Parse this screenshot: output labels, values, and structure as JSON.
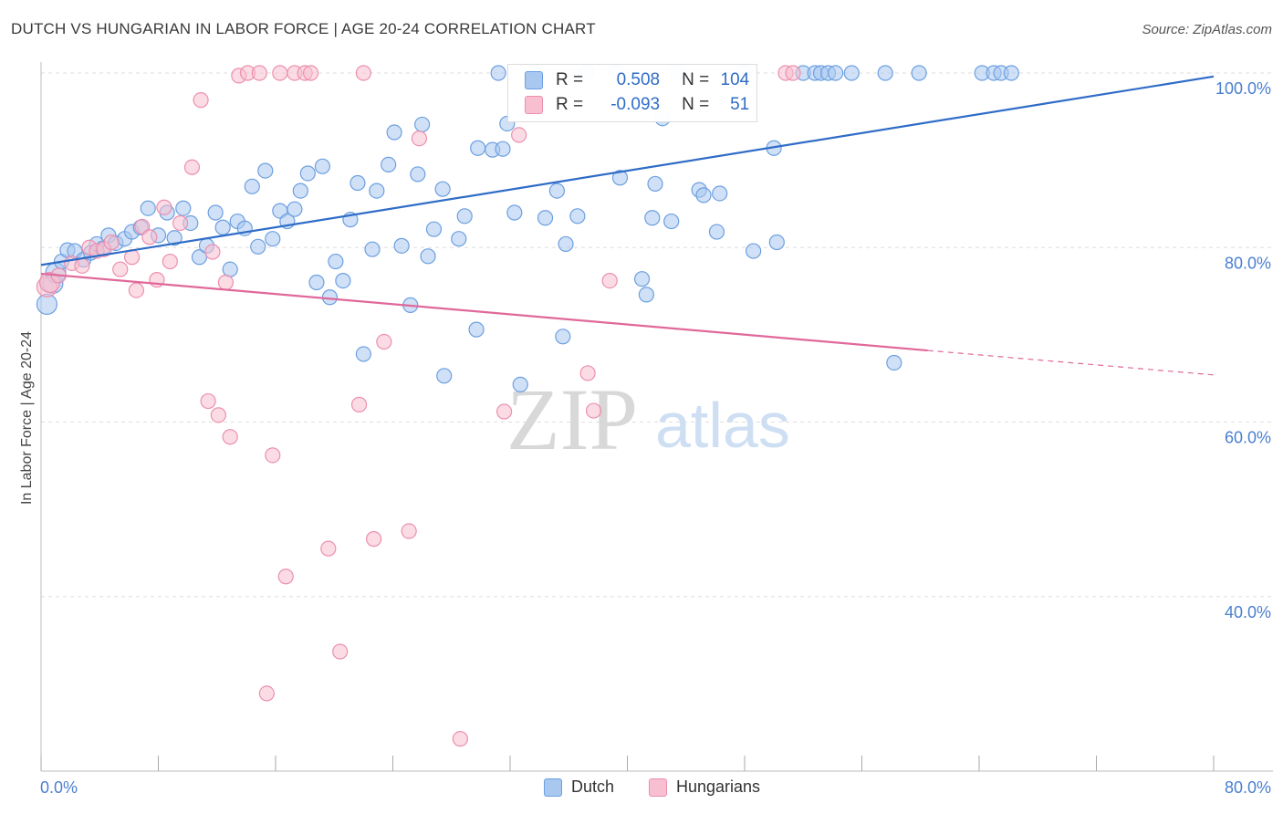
{
  "title": "DUTCH VS HUNGARIAN IN LABOR FORCE | AGE 20-24 CORRELATION CHART",
  "source": "Source: ZipAtlas.com",
  "watermark": {
    "zip": "ZIP",
    "atlas": "atlas"
  },
  "legend": {
    "dutch": {
      "r_label": "R = ",
      "r_value": "0.508",
      "n_label": "N = ",
      "n_value": "104"
    },
    "hungarians": {
      "r_label": "R = ",
      "r_value": "-0.093",
      "n_label": "N = ",
      "n_value": "51"
    }
  },
  "colors": {
    "dutch_fill": "#a9c8f0",
    "dutch_stroke": "#6c9fe0",
    "dutch_line": "#2f6cc7",
    "hung_fill": "#f7bfd0",
    "hung_stroke": "#ec8fae",
    "hung_line": "#e0689a",
    "tick": "#4a7fd0",
    "grid": "#dedede"
  },
  "chart_data": {
    "type": "scatter",
    "title": "DUTCH VS HUNGARIAN IN LABOR FORCE | AGE 20-24 CORRELATION CHART",
    "xlabel": "",
    "ylabel": "In Labor Force | Age 20-24",
    "xlim": [
      0,
      80
    ],
    "ylim": [
      20,
      100
    ],
    "x_ticks": [
      "0.0%",
      "80.0%"
    ],
    "y_ticks": [
      "100.0%",
      "80.0%",
      "60.0%",
      "40.0%"
    ],
    "y_tick_values": [
      100,
      80,
      60,
      40
    ],
    "grid": true,
    "legend_position": "top-center",
    "series": [
      {
        "name": "Dutch",
        "trend": {
          "x": [
            0,
            80
          ],
          "y": [
            78.0,
            99.6
          ]
        },
        "points": [
          [
            0.4,
            73.5
          ],
          [
            0.8,
            75.9
          ],
          [
            1.0,
            77.1
          ],
          [
            1.4,
            78.4
          ],
          [
            1.8,
            79.7
          ],
          [
            2.3,
            79.6
          ],
          [
            2.9,
            78.6
          ],
          [
            3.4,
            79.4
          ],
          [
            3.8,
            80.4
          ],
          [
            4.2,
            79.9
          ],
          [
            4.6,
            81.4
          ],
          [
            5.1,
            80.5
          ],
          [
            5.7,
            81.0
          ],
          [
            6.2,
            81.8
          ],
          [
            6.8,
            82.3
          ],
          [
            7.3,
            84.5
          ],
          [
            8.0,
            81.4
          ],
          [
            8.6,
            84.0
          ],
          [
            9.1,
            81.1
          ],
          [
            9.7,
            84.5
          ],
          [
            10.2,
            82.8
          ],
          [
            10.8,
            78.9
          ],
          [
            11.3,
            80.2
          ],
          [
            11.9,
            84.0
          ],
          [
            12.4,
            82.3
          ],
          [
            12.9,
            77.5
          ],
          [
            13.4,
            83.0
          ],
          [
            13.9,
            82.2
          ],
          [
            14.4,
            87.0
          ],
          [
            14.8,
            80.1
          ],
          [
            15.3,
            88.8
          ],
          [
            15.8,
            81.0
          ],
          [
            16.3,
            84.2
          ],
          [
            16.8,
            83.0
          ],
          [
            17.3,
            84.4
          ],
          [
            17.7,
            86.5
          ],
          [
            18.2,
            88.5
          ],
          [
            18.8,
            76.0
          ],
          [
            19.2,
            89.3
          ],
          [
            19.7,
            74.3
          ],
          [
            20.1,
            78.4
          ],
          [
            20.6,
            76.2
          ],
          [
            21.1,
            83.2
          ],
          [
            21.6,
            87.4
          ],
          [
            22.0,
            67.8
          ],
          [
            22.6,
            79.8
          ],
          [
            22.9,
            86.5
          ],
          [
            23.7,
            89.5
          ],
          [
            24.1,
            93.2
          ],
          [
            24.6,
            80.2
          ],
          [
            25.2,
            73.4
          ],
          [
            25.7,
            88.4
          ],
          [
            26.0,
            94.1
          ],
          [
            26.4,
            79.0
          ],
          [
            26.8,
            82.1
          ],
          [
            27.4,
            86.7
          ],
          [
            27.5,
            65.3
          ],
          [
            28.5,
            81.0
          ],
          [
            28.9,
            83.6
          ],
          [
            29.7,
            70.6
          ],
          [
            29.8,
            91.4
          ],
          [
            30.8,
            91.2
          ],
          [
            31.2,
            100.0
          ],
          [
            31.5,
            91.3
          ],
          [
            31.8,
            94.2
          ],
          [
            32.3,
            84.0
          ],
          [
            32.7,
            64.3
          ],
          [
            33.6,
            100.0
          ],
          [
            34.4,
            83.4
          ],
          [
            35.2,
            86.5
          ],
          [
            35.6,
            69.8
          ],
          [
            35.8,
            80.4
          ],
          [
            36.6,
            83.6
          ],
          [
            37.2,
            100.0
          ],
          [
            39.2,
            100.0
          ],
          [
            39.5,
            88.0
          ],
          [
            41.0,
            76.4
          ],
          [
            41.3,
            74.6
          ],
          [
            41.7,
            83.4
          ],
          [
            41.9,
            87.3
          ],
          [
            42.4,
            94.8
          ],
          [
            43.0,
            83.0
          ],
          [
            43.4,
            100.0
          ],
          [
            44.9,
            86.6
          ],
          [
            45.2,
            86.0
          ],
          [
            46.1,
            81.8
          ],
          [
            46.3,
            86.2
          ],
          [
            48.0,
            100.0
          ],
          [
            48.6,
            79.6
          ],
          [
            50.0,
            91.4
          ],
          [
            50.2,
            80.6
          ],
          [
            52.0,
            100.0
          ],
          [
            52.8,
            100.0
          ],
          [
            53.2,
            100.0
          ],
          [
            53.7,
            100.0
          ],
          [
            54.2,
            100.0
          ],
          [
            55.3,
            100.0
          ],
          [
            57.6,
            100.0
          ],
          [
            58.2,
            66.8
          ],
          [
            59.9,
            100.0
          ],
          [
            64.2,
            100.0
          ],
          [
            65.0,
            100.0
          ],
          [
            65.5,
            100.0
          ],
          [
            66.2,
            100.0
          ]
        ]
      },
      {
        "name": "Hungarians",
        "trend": {
          "x": [
            0,
            60.5,
            80
          ],
          "y": [
            77.0,
            68.2,
            65.4
          ],
          "dashed_from_x": 60.5
        },
        "points": [
          [
            0.4,
            75.5
          ],
          [
            0.6,
            76.0
          ],
          [
            1.2,
            76.8
          ],
          [
            2.1,
            78.2
          ],
          [
            2.8,
            77.9
          ],
          [
            3.3,
            80.0
          ],
          [
            3.8,
            79.6
          ],
          [
            4.3,
            79.8
          ],
          [
            4.8,
            80.6
          ],
          [
            5.4,
            77.5
          ],
          [
            6.2,
            78.9
          ],
          [
            6.5,
            75.1
          ],
          [
            6.9,
            82.4
          ],
          [
            7.4,
            81.2
          ],
          [
            7.9,
            76.3
          ],
          [
            8.4,
            84.6
          ],
          [
            8.8,
            78.4
          ],
          [
            9.5,
            82.8
          ],
          [
            10.3,
            89.2
          ],
          [
            10.9,
            96.9
          ],
          [
            11.4,
            62.4
          ],
          [
            11.7,
            79.5
          ],
          [
            12.1,
            60.8
          ],
          [
            12.6,
            76.0
          ],
          [
            12.9,
            58.3
          ],
          [
            13.5,
            99.7
          ],
          [
            14.1,
            100.0
          ],
          [
            14.9,
            100.0
          ],
          [
            15.4,
            28.9
          ],
          [
            15.8,
            56.2
          ],
          [
            16.3,
            100.0
          ],
          [
            16.7,
            42.3
          ],
          [
            17.3,
            100.0
          ],
          [
            18.0,
            100.0
          ],
          [
            18.4,
            100.0
          ],
          [
            19.6,
            45.5
          ],
          [
            20.4,
            33.7
          ],
          [
            21.7,
            62.0
          ],
          [
            22.0,
            100.0
          ],
          [
            22.7,
            46.6
          ],
          [
            23.4,
            69.2
          ],
          [
            25.1,
            47.5
          ],
          [
            25.8,
            92.5
          ],
          [
            28.6,
            23.7
          ],
          [
            31.6,
            61.2
          ],
          [
            32.6,
            92.9
          ],
          [
            37.3,
            65.6
          ],
          [
            37.7,
            61.3
          ],
          [
            38.8,
            76.2
          ],
          [
            50.8,
            100.0
          ],
          [
            51.3,
            100.0
          ]
        ]
      }
    ]
  }
}
